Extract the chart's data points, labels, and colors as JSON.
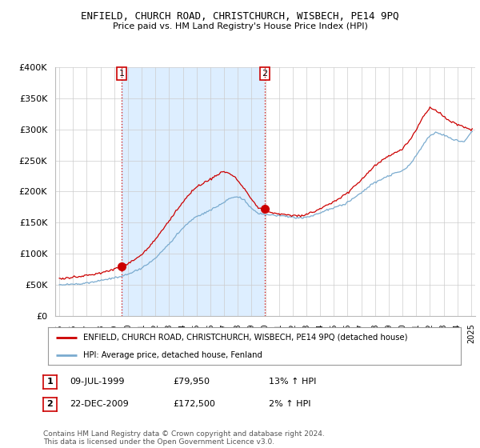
{
  "title": "ENFIELD, CHURCH ROAD, CHRISTCHURCH, WISBECH, PE14 9PQ",
  "subtitle": "Price paid vs. HM Land Registry's House Price Index (HPI)",
  "legend_label_red": "ENFIELD, CHURCH ROAD, CHRISTCHURCH, WISBECH, PE14 9PQ (detached house)",
  "legend_label_blue": "HPI: Average price, detached house, Fenland",
  "footnote": "Contains HM Land Registry data © Crown copyright and database right 2024.\nThis data is licensed under the Open Government Licence v3.0.",
  "red_color": "#cc0000",
  "blue_color": "#7aabcf",
  "shade_color": "#ddeeff",
  "marker1_x": 1999.54,
  "marker1_value": 79950,
  "marker2_x": 2009.98,
  "marker2_value": 172500,
  "table_rows": [
    [
      "1",
      "09-JUL-1999",
      "£79,950",
      "13% ↑ HPI"
    ],
    [
      "2",
      "22-DEC-2009",
      "£172,500",
      "2% ↑ HPI"
    ]
  ],
  "ylim": [
    0,
    400000
  ],
  "yticks": [
    0,
    50000,
    100000,
    150000,
    200000,
    250000,
    300000,
    350000,
    400000
  ],
  "background_color": "#ffffff",
  "grid_color": "#cccccc"
}
